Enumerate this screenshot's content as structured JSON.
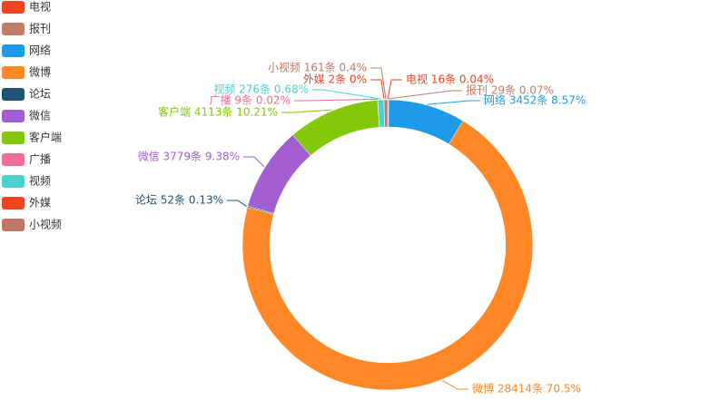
{
  "chart_data": {
    "type": "donut",
    "categories": [
      "电视",
      "报刊",
      "网络",
      "微博",
      "论坛",
      "微信",
      "客户端",
      "广播",
      "视频",
      "外媒",
      "小视频"
    ],
    "values": [
      16,
      29,
      3452,
      28414,
      52,
      3779,
      4113,
      9,
      276,
      2,
      161
    ],
    "value_labels": [
      "电视 16条  0.04%",
      "报刊 29条  0.07%",
      "网络 3452条  8.57%",
      "微博 28414条  70.5%",
      "论坛 52条  0.13%",
      "微信 3779条  9.38%",
      "客户端 4113条  10.21%",
      "广播 9条  0.02%",
      "视频 276条  0.68%",
      "外媒 2条  0%",
      "小视频 161条  0.4%"
    ],
    "colors": [
      "#ee4422",
      "#c27c6a",
      "#1e9be8",
      "#ff8725",
      "#1e5575",
      "#a35ecf",
      "#83c70a",
      "#f06c9b",
      "#4dd0d0",
      "#ee4422",
      "#c27866"
    ],
    "legend": "left"
  }
}
